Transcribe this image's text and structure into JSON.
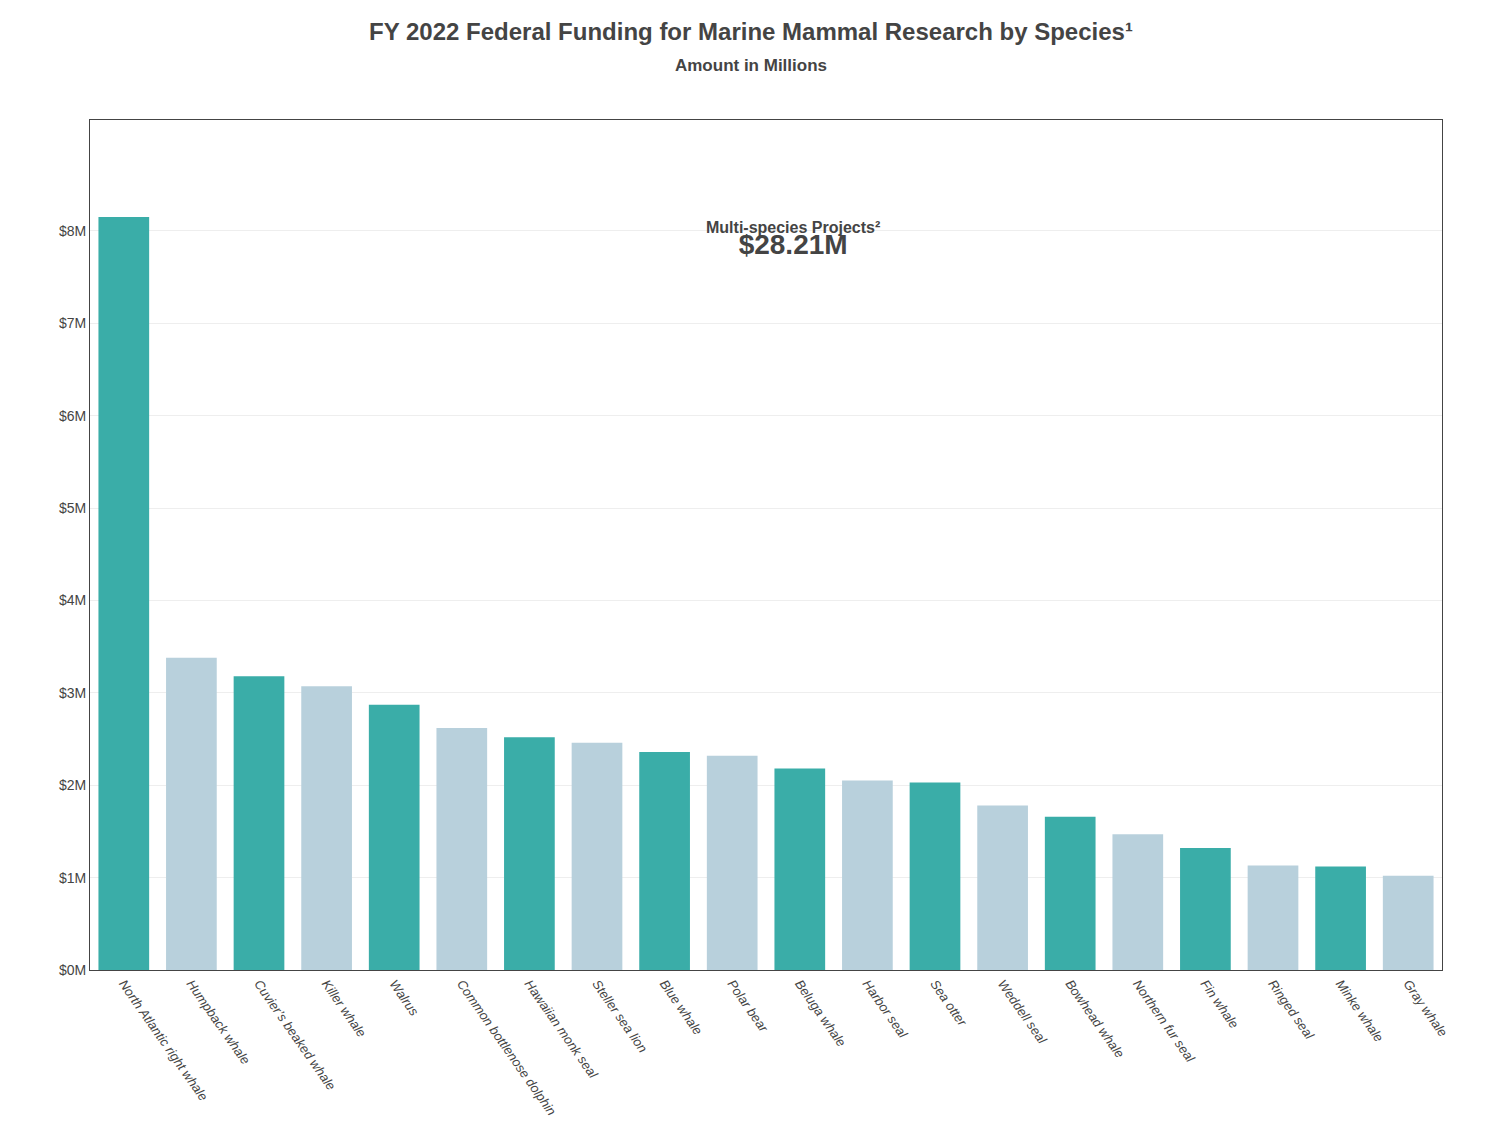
{
  "chart_data": {
    "type": "bar",
    "title": "FY 2022 Federal Funding for Marine Mammal Research by Species¹",
    "subtitle": "Amount in Millions",
    "annotations": [
      "Multi-species Projects²",
      "$28.21M"
    ],
    "categories": [
      "North Atlantic right whale",
      "Humpback whale",
      "Cuvier’s beaked whale",
      "Killer whale",
      "Walrus",
      "Common bottlenose dolphin",
      "Hawaiian monk seal",
      "Steller sea lion",
      "Blue whale",
      "Polar bear",
      "Beluga whale",
      "Harbor seal",
      "Sea otter",
      "Weddell seal",
      "Bowhead whale",
      "Northern fur seal",
      "Fin whale",
      "Ringed seal",
      "Minke whale",
      "Gray whale"
    ],
    "values": [
      8.15,
      3.38,
      3.18,
      3.07,
      2.87,
      2.62,
      2.52,
      2.46,
      2.36,
      2.32,
      2.18,
      2.05,
      2.03,
      1.78,
      1.66,
      1.47,
      1.32,
      1.13,
      1.12,
      1.02
    ],
    "colors": [
      "#3AADA8",
      "#B8D0DC",
      "#3AADA8",
      "#B8D0DC",
      "#3AADA8",
      "#B8D0DC",
      "#3AADA8",
      "#B8D0DC",
      "#3AADA8",
      "#B8D0DC",
      "#3AADA8",
      "#B8D0DC",
      "#3AADA8",
      "#B8D0DC",
      "#3AADA8",
      "#B8D0DC",
      "#3AADA8",
      "#B8D0DC",
      "#3AADA8",
      "#B8D0DC"
    ],
    "ylim": [
      0,
      9.2
    ],
    "yticks": [
      {
        "value": 0,
        "label": "$0M"
      },
      {
        "value": 1,
        "label": "$1M"
      },
      {
        "value": 2,
        "label": "$2M"
      },
      {
        "value": 3,
        "label": "$3M"
      },
      {
        "value": 4,
        "label": "$4M"
      },
      {
        "value": 5,
        "label": "$5M"
      },
      {
        "value": 6,
        "label": "$6M"
      },
      {
        "value": 7,
        "label": "$7M"
      },
      {
        "value": 8,
        "label": "$8M"
      }
    ],
    "grid": true
  }
}
